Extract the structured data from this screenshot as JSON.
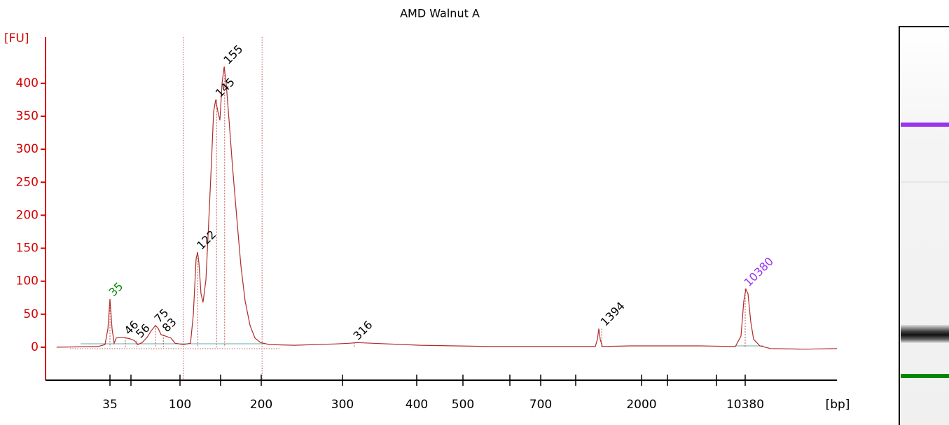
{
  "chart_data": {
    "type": "line",
    "title": "AMD Walnut A",
    "y_label": "[FU]",
    "x_label": "[bp]",
    "color": "#b22a2a",
    "axis_color": "#d40000",
    "ylim": [
      -50,
      470
    ],
    "yticks": [
      0,
      50,
      100,
      150,
      200,
      250,
      300,
      350,
      400
    ],
    "xlim": [
      0,
      20000
    ],
    "xticks": [
      35,
      {
        "value": 50,
        "label": null
      },
      100,
      {
        "value": 150,
        "label": null
      },
      200,
      300,
      400,
      500,
      {
        "value": 600,
        "label": null
      },
      700,
      {
        "value": 1000,
        "label": null
      },
      2000,
      {
        "value": 4000,
        "label": null
      },
      {
        "value": 7000,
        "label": null
      },
      10380
    ],
    "region": [
      104,
      201
    ],
    "x": [
      6,
      28.5,
      32.3,
      33.9,
      35,
      36.5,
      38,
      39.5,
      44,
      49,
      53.6,
      57,
      61.4,
      66.4,
      70.7,
      75,
      77.9,
      80.7,
      85,
      90.7,
      95,
      104.3,
      112.9,
      116.4,
      119.8,
      121.6,
      123.3,
      125.9,
      128.4,
      131.9,
      135.3,
      138.8,
      141.4,
      144,
      146.6,
      149.1,
      151.7,
      154.3,
      156.9,
      160.3,
      164.7,
      169.8,
      175,
      180.2,
      186.2,
      192.2,
      199.1,
      210.3,
      240.5,
      292.2,
      310.4,
      319.8,
      338.7,
      407.6,
      558.2,
      868,
      1298,
      1330,
      1351,
      1372,
      1404,
      1830,
      5996,
      9226,
      9885,
      10215,
      10453,
      10673,
      10967,
      11261,
      11922,
      13024,
      16696,
      20000
    ],
    "values": [
      0,
      1,
      4,
      28,
      73,
      28,
      6,
      14,
      15,
      13,
      10,
      4,
      7,
      15,
      25,
      33,
      28,
      19,
      17,
      14,
      6,
      4,
      6,
      49,
      134,
      144,
      128,
      81,
      68,
      102,
      187,
      282,
      357,
      375,
      357,
      344,
      399,
      425,
      399,
      346,
      272,
      197,
      123,
      70,
      33,
      14,
      7,
      4,
      3,
      5,
      6,
      7,
      6,
      3,
      1,
      1,
      1,
      12,
      28,
      12,
      1,
      2,
      2,
      1,
      17,
      70,
      88,
      81,
      38,
      12,
      2,
      -2,
      -3,
      -2
    ],
    "peaks": [
      {
        "bp": 35,
        "fu": 73,
        "color": "#008800"
      },
      {
        "bp": 46,
        "fu": 15,
        "color": "#000000"
      },
      {
        "bp": 56,
        "fu": 10,
        "color": "#000000"
      },
      {
        "bp": 75,
        "fu": 33,
        "color": "#000000"
      },
      {
        "bp": 83,
        "fu": 19,
        "color": "#000000"
      },
      {
        "bp": 122,
        "fu": 144,
        "color": "#000000"
      },
      {
        "bp": 145,
        "fu": 375,
        "color": "#000000"
      },
      {
        "bp": 155,
        "fu": 425,
        "color": "#000000"
      },
      {
        "bp": 316,
        "fu": 7,
        "color": "#000000"
      },
      {
        "bp": 1394,
        "fu": 28,
        "color": "#000000"
      },
      {
        "bp": 10380,
        "fu": 88,
        "color": "#9933ee"
      }
    ]
  }
}
